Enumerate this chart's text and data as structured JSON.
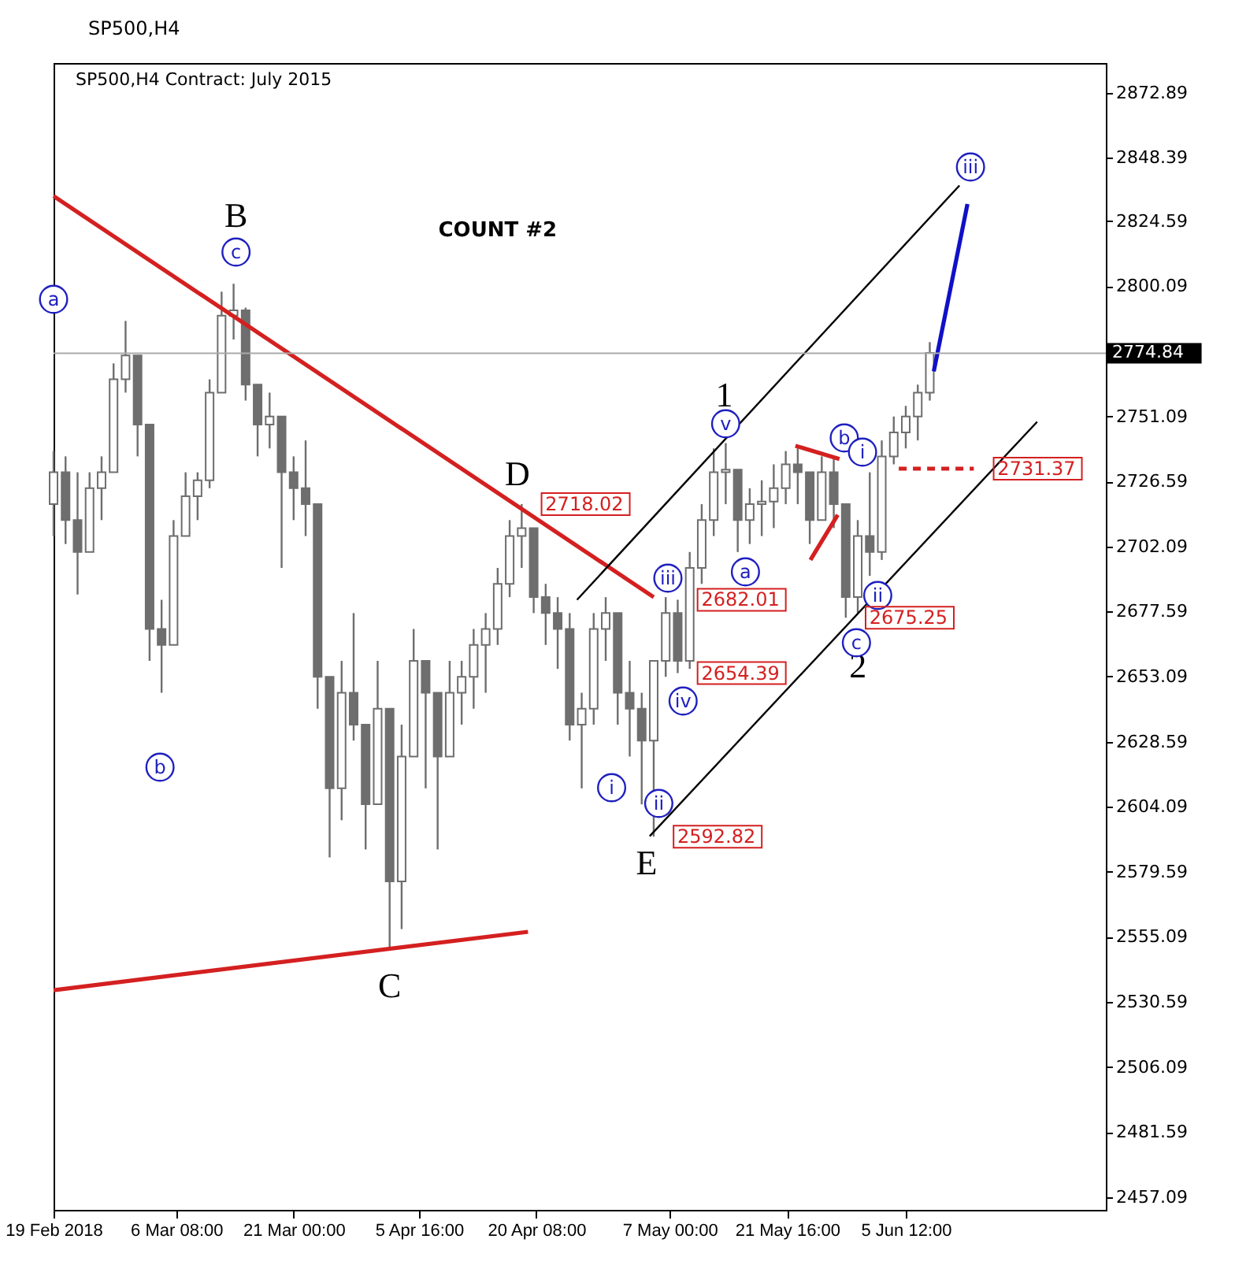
{
  "chart_data": {
    "type": "candlestick",
    "title": "SP500,H4",
    "subtitle": "SP500,H4   Contract: July 2015",
    "color": "#6e6e6e",
    "x": [
      "2018-02-19T00:00",
      "2018-02-20T12:00",
      "2018-02-22T00:00",
      "2018-02-23T12:00",
      "2018-02-25T00:00",
      "2018-02-26T12:00",
      "2018-02-28T00:00",
      "2018-03-01T12:00",
      "2018-03-03T00:00",
      "2018-03-04T12:00",
      "2018-03-06T00:00",
      "2018-03-07T12:00",
      "2018-03-09T00:00",
      "2018-03-10T12:00",
      "2018-03-12T00:00",
      "2018-03-13T12:00",
      "2018-03-15T00:00",
      "2018-03-16T12:00",
      "2018-03-18T00:00",
      "2018-03-19T12:00",
      "2018-03-21T00:00",
      "2018-03-22T12:00",
      "2018-03-24T00:00",
      "2018-03-25T12:00",
      "2018-03-27T00:00",
      "2018-03-28T12:00",
      "2018-03-30T00:00",
      "2018-03-31T12:00",
      "2018-04-02T00:00",
      "2018-04-03T12:00",
      "2018-04-05T00:00",
      "2018-04-06T12:00",
      "2018-04-08T00:00",
      "2018-04-09T12:00",
      "2018-04-11T00:00",
      "2018-04-12T12:00",
      "2018-04-14T00:00",
      "2018-04-15T12:00",
      "2018-04-17T00:00",
      "2018-04-18T12:00",
      "2018-04-20T00:00",
      "2018-04-21T12:00",
      "2018-04-23T00:00",
      "2018-04-24T12:00",
      "2018-04-26T00:00",
      "2018-04-27T12:00",
      "2018-04-29T00:00",
      "2018-04-30T12:00",
      "2018-05-02T00:00",
      "2018-05-03T12:00",
      "2018-05-05T00:00",
      "2018-05-06T12:00",
      "2018-05-08T00:00",
      "2018-05-09T12:00",
      "2018-05-11T00:00",
      "2018-05-12T12:00",
      "2018-05-14T00:00",
      "2018-05-15T12:00",
      "2018-05-17T00:00",
      "2018-05-18T12:00",
      "2018-05-20T00:00",
      "2018-05-21T12:00",
      "2018-05-23T00:00",
      "2018-05-24T12:00",
      "2018-05-26T00:00",
      "2018-05-27T12:00",
      "2018-05-29T00:00",
      "2018-05-30T12:00",
      "2018-06-01T00:00",
      "2018-06-02T12:00",
      "2018-06-04T00:00",
      "2018-06-05T12:00",
      "2018-06-07T00:00",
      "2018-06-08T12:00"
    ],
    "ohlc": [
      [
        2718,
        2738,
        2706,
        2730
      ],
      [
        2730,
        2736,
        2703,
        2712
      ],
      [
        2712,
        2730,
        2684,
        2700
      ],
      [
        2700,
        2730,
        2700,
        2724
      ],
      [
        2724,
        2736,
        2712,
        2730
      ],
      [
        2730,
        2771,
        2730,
        2765
      ],
      [
        2765,
        2787,
        2760,
        2774
      ],
      [
        2774,
        2774,
        2736,
        2748
      ],
      [
        2748,
        2748,
        2659,
        2671
      ],
      [
        2671,
        2682,
        2647,
        2665
      ],
      [
        2665,
        2712,
        2665,
        2706
      ],
      [
        2706,
        2730,
        2706,
        2721
      ],
      [
        2721,
        2730,
        2712,
        2727
      ],
      [
        2727,
        2765,
        2724,
        2760
      ],
      [
        2760,
        2798,
        2760,
        2789
      ],
      [
        2789,
        2801,
        2780,
        2791
      ],
      [
        2791,
        2792,
        2757,
        2763
      ],
      [
        2763,
        2763,
        2736,
        2748
      ],
      [
        2748,
        2760,
        2739,
        2751
      ],
      [
        2751,
        2751,
        2694,
        2730
      ],
      [
        2730,
        2736,
        2712,
        2724
      ],
      [
        2724,
        2742,
        2706,
        2718
      ],
      [
        2718,
        2718,
        2641,
        2653
      ],
      [
        2653,
        2653,
        2585,
        2611
      ],
      [
        2611,
        2659,
        2599,
        2647
      ],
      [
        2647,
        2677,
        2629,
        2635
      ],
      [
        2635,
        2635,
        2588,
        2605
      ],
      [
        2605,
        2659,
        2605,
        2641
      ],
      [
        2641,
        2641,
        2551,
        2576
      ],
      [
        2576,
        2635,
        2558,
        2623
      ],
      [
        2623,
        2671,
        2623,
        2659
      ],
      [
        2659,
        2659,
        2611,
        2647
      ],
      [
        2647,
        2647,
        2588,
        2623
      ],
      [
        2623,
        2659,
        2623,
        2647
      ],
      [
        2647,
        2659,
        2635,
        2653
      ],
      [
        2653,
        2671,
        2641,
        2665
      ],
      [
        2665,
        2677,
        2647,
        2671
      ],
      [
        2671,
        2694,
        2665,
        2688
      ],
      [
        2688,
        2712,
        2683,
        2706
      ],
      [
        2706,
        2718.02,
        2694,
        2709
      ],
      [
        2709,
        2709,
        2677,
        2683
      ],
      [
        2683,
        2688,
        2665,
        2677
      ],
      [
        2677,
        2683,
        2656,
        2671
      ],
      [
        2671,
        2677,
        2629,
        2635
      ],
      [
        2635,
        2647,
        2611,
        2641
      ],
      [
        2641,
        2677,
        2635,
        2671
      ],
      [
        2671,
        2683,
        2659,
        2677
      ],
      [
        2677,
        2677,
        2635,
        2647
      ],
      [
        2647,
        2659,
        2623,
        2641
      ],
      [
        2641,
        2647,
        2605,
        2629
      ],
      [
        2629,
        2659,
        2592.82,
        2659
      ],
      [
        2659,
        2683,
        2653,
        2677
      ],
      [
        2677,
        2682.01,
        2654.39,
        2659
      ],
      [
        2659,
        2700,
        2656,
        2694
      ],
      [
        2694,
        2718,
        2688,
        2712
      ],
      [
        2712,
        2739,
        2706,
        2730
      ],
      [
        2730,
        2741,
        2718,
        2731
      ],
      [
        2731,
        2731,
        2700,
        2712
      ],
      [
        2712,
        2724,
        2703,
        2718
      ],
      [
        2718,
        2727,
        2706,
        2719
      ],
      [
        2719,
        2733,
        2709,
        2724
      ],
      [
        2724,
        2738,
        2718,
        2733
      ],
      [
        2733,
        2739,
        2718,
        2730
      ],
      [
        2730,
        2730,
        2703,
        2712
      ],
      [
        2712,
        2736,
        2712,
        2730
      ],
      [
        2730,
        2736,
        2709,
        2718
      ],
      [
        2718,
        2718,
        2675.25,
        2683
      ],
      [
        2683,
        2712,
        2677,
        2706
      ],
      [
        2706,
        2730,
        2691,
        2700
      ],
      [
        2700,
        2742,
        2697,
        2736
      ],
      [
        2736,
        2751,
        2733,
        2745
      ],
      [
        2745,
        2755,
        2739,
        2751
      ],
      [
        2751,
        2763,
        2742,
        2760
      ],
      [
        2760,
        2779,
        2757,
        2775
      ]
    ],
    "series": [
      {
        "type": "line",
        "x": [
          "2018-02-19T00:00",
          "2018-05-05T00:00"
        ],
        "values": [
          2834,
          2683
        ],
        "color": "#d42020",
        "line_style": "solid"
      },
      {
        "type": "line",
        "x": [
          "2018-02-19T00:00",
          "2018-04-19T07:00"
        ],
        "values": [
          2535,
          2557
        ],
        "color": "#d42020",
        "line_style": "solid"
      },
      {
        "type": "line",
        "x": [
          "2018-05-22T17:00",
          "2018-05-28T05:00"
        ],
        "values": [
          2740,
          2735
        ],
        "color": "#d42020",
        "line_style": "solid"
      },
      {
        "type": "line",
        "x": [
          "2018-05-24T14:00",
          "2018-05-28T00:00"
        ],
        "values": [
          2697,
          2714
        ],
        "color": "#d42020",
        "line_style": "solid"
      },
      {
        "type": "line",
        "x": [
          "2018-06-04T15:00",
          "2018-06-14T00:00"
        ],
        "values": [
          2731.37,
          2731.37
        ],
        "color": "#d42020",
        "line_style": "dashed"
      },
      {
        "type": "line",
        "x": [
          "2018-04-25T10:00",
          "2018-06-12T05:00"
        ],
        "values": [
          2682,
          2838
        ],
        "color": "#000000",
        "line_style": "solid"
      },
      {
        "type": "line",
        "x": [
          "2018-05-04T12:00",
          "2018-06-21T22:00"
        ],
        "values": [
          2593,
          2749
        ],
        "color": "#000000",
        "line_style": "solid"
      },
      {
        "type": "line",
        "x": [
          "2018-06-09T00:00",
          "2018-06-13T05:00"
        ],
        "values": [
          2768,
          2831
        ],
        "color": "#1010c8",
        "line_style": "solid"
      }
    ],
    "annotations": [
      "COUNT #2",
      "B",
      "C",
      "D",
      "E",
      "1",
      "2",
      "a",
      "c",
      "b",
      "iii",
      "i",
      "iv",
      "ii",
      "v",
      "a",
      "b",
      "i",
      "ii",
      "c",
      "iii",
      {
        "text": "2718.02",
        "x": "2018-04-18T12:00",
        "y": 2718.02
      },
      {
        "text": "2682.01",
        "x": "2018-05-08T00:00",
        "y": 2682.01
      },
      {
        "text": "2654.39",
        "x": "2018-05-08T00:00",
        "y": 2654.39
      },
      {
        "text": "2592.82",
        "x": "2018-05-05T00:00",
        "y": 2592.82
      },
      {
        "text": "2675.25",
        "x": "2018-05-29T00:00",
        "y": 2675.25
      },
      {
        "text": "2731.37",
        "x": "2018-06-14T00:00",
        "y": 2731.37
      }
    ],
    "ref_lines": [
      {
        "axis": "y",
        "value": 2774.84,
        "label": "2774.84",
        "color": "#aaaaaa"
      }
    ],
    "xlim": [
      "2018-02-19T00:00",
      "2018-06-30T12:00"
    ],
    "xticks": [
      {
        "value": "2018-02-19T00:00",
        "label": "19 Feb 2018"
      },
      {
        "value": "2018-03-06T08:00",
        "label": "6 Mar 08:00"
      },
      {
        "value": "2018-03-21T00:00",
        "label": "21 Mar 00:00"
      },
      {
        "value": "2018-04-05T16:00",
        "label": "5 Apr 16:00"
      },
      {
        "value": "2018-04-20T08:00",
        "label": "20 Apr 08:00"
      },
      {
        "value": "2018-05-07T00:00",
        "label": "7 May 00:00"
      },
      {
        "value": "2018-05-21T16:00",
        "label": "21 May 16:00"
      },
      {
        "value": "2018-06-05T12:00",
        "label": "5 Jun 12:00"
      }
    ],
    "ylim": [
      2452.3,
      2884.1
    ],
    "yticks": [
      2457.09,
      2481.59,
      2506.09,
      2530.59,
      2555.09,
      2579.59,
      2604.09,
      2628.59,
      2653.09,
      2677.59,
      2702.09,
      2726.59,
      2751.09,
      2800.09,
      2824.59,
      2848.39,
      2872.89
    ],
    "grid": false
  }
}
